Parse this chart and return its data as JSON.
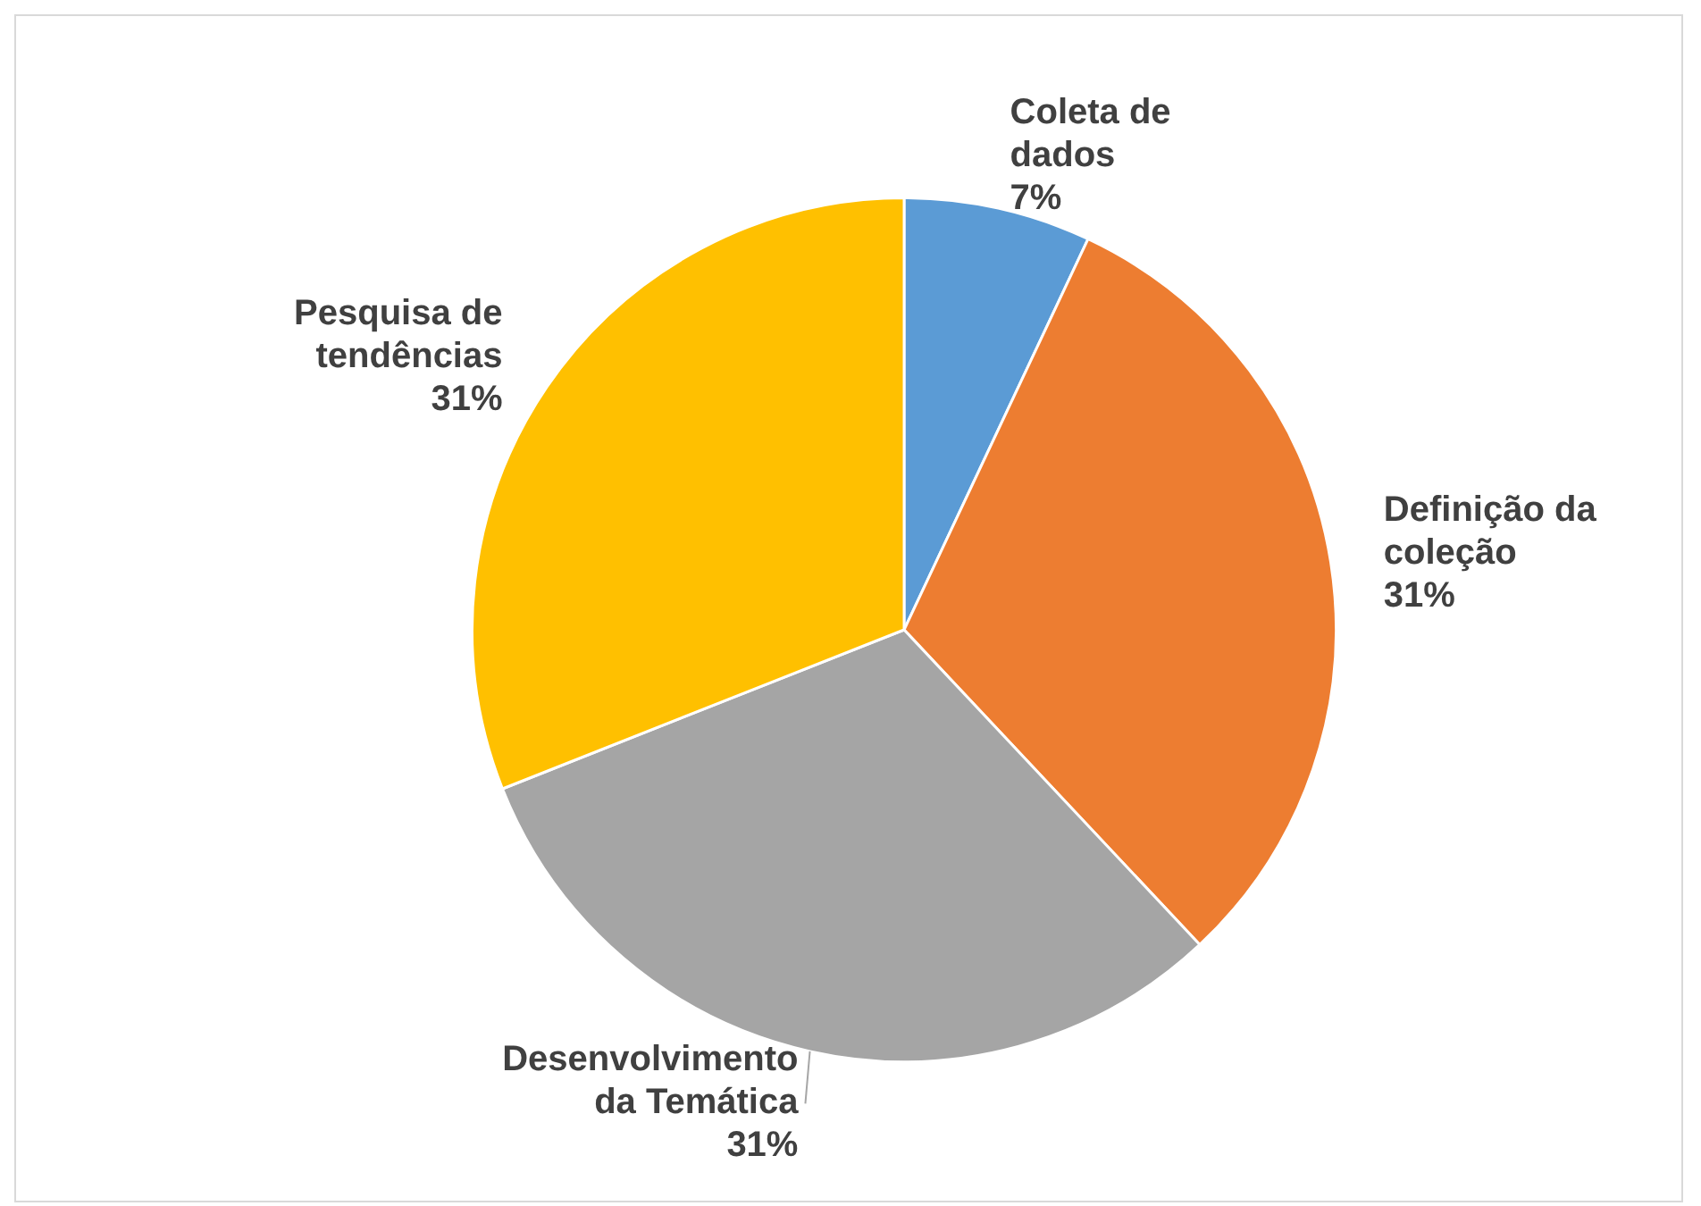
{
  "chart_data": {
    "type": "pie",
    "categories": [
      "Coleta de dados",
      "Definição da coleção",
      "Desenvolvimento da Temática",
      "Pesquisa de tendências"
    ],
    "values": [
      7,
      31,
      31,
      31
    ],
    "value_labels": [
      "7%",
      "31%",
      "31%",
      "31%"
    ],
    "colors": [
      "#5b9bd5",
      "#ed7d31",
      "#a5a5a5",
      "#ffc000"
    ],
    "legend": false
  }
}
